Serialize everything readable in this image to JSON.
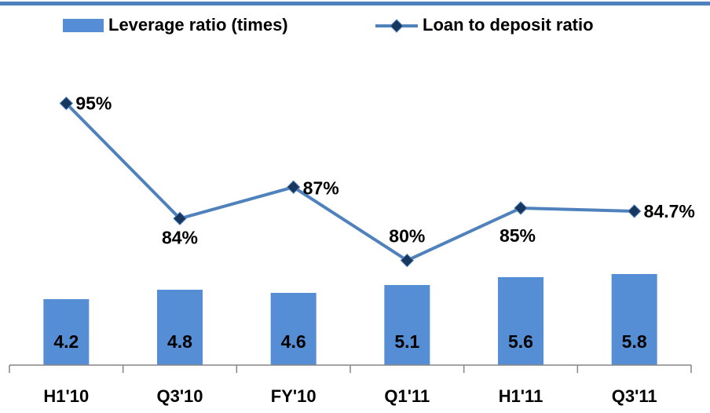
{
  "chart_data": {
    "type": "bar-line",
    "categories": [
      "H1'10",
      "Q3'10",
      "FY'10",
      "Q1'11",
      "H1'11",
      "Q3'11"
    ],
    "series": [
      {
        "name": "Leverage ratio (times)",
        "type": "bar",
        "color": "#558ed5",
        "values": [
          4.2,
          4.8,
          4.6,
          5.1,
          5.6,
          5.8
        ]
      },
      {
        "name": "Loan to deposit ratio",
        "type": "line",
        "axis": "y2",
        "color": "#4f81bd",
        "marker_color": "#17375e",
        "values": [
          95,
          84,
          87,
          80,
          85,
          84.7
        ],
        "value_labels": [
          "95%",
          "84%",
          "87%",
          "80%",
          "85%",
          "84.7%"
        ]
      }
    ],
    "ylim": [
      0,
      20
    ],
    "y2lim": [
      70,
      100
    ]
  }
}
